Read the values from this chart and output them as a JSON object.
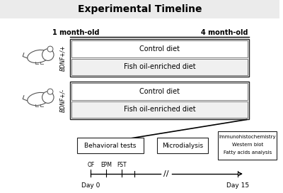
{
  "title": "Experimental Timeline",
  "title_fontsize": 10,
  "title_bg": "#ebebeb",
  "fig_bg": "#ffffff",
  "month_labels": [
    "1 month-old",
    "4 month-old"
  ],
  "group1_label": "BDNF+/+",
  "group2_label": "BDNF+/-",
  "diet_labels": [
    "Control diet",
    "Fish oil-enriched diet"
  ],
  "immuno_lines": [
    "Immunohistochemistry",
    "Western blot",
    "Fatty acids analysis"
  ],
  "tests": [
    "OF",
    "EPM",
    "FST"
  ],
  "box_light_fill": "#f0f0f0",
  "box_edge": "#222222",
  "white_fill": "#ffffff"
}
